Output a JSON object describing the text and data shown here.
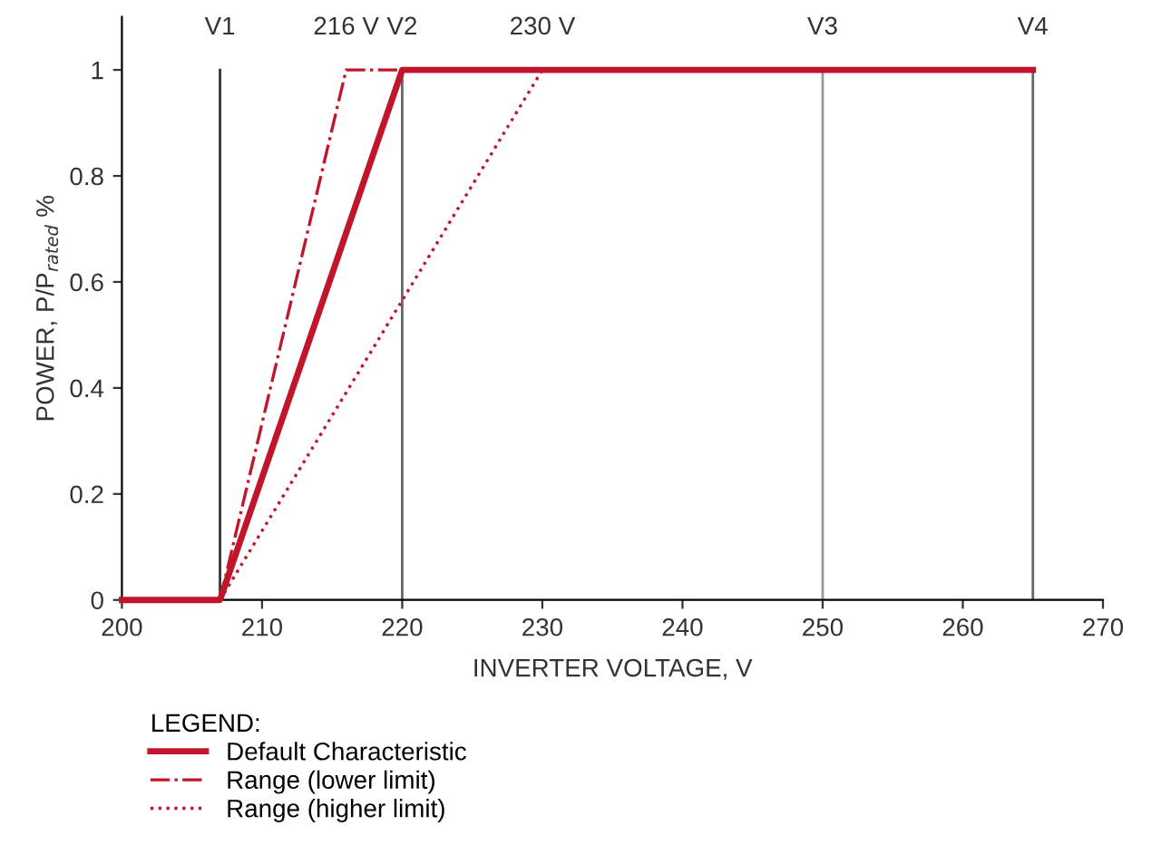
{
  "chart_data": {
    "type": "line",
    "xlabel": "INVERTER VOLTAGE, V",
    "ylabel": "POWER, P/P$_{rated}$ %",
    "xlim": [
      200,
      270
    ],
    "xticks": [
      200,
      210,
      220,
      230,
      240,
      250,
      260,
      270
    ],
    "ylim": [
      0,
      1.1
    ],
    "yticks": [
      0,
      0.2,
      0.4,
      0.6,
      0.8,
      1
    ],
    "grid": false,
    "legend": "bottom left",
    "legend_title": "LEGEND:",
    "series": [
      {
        "name": "Default Characteristic",
        "color": "#c0152a",
        "x": [
          200,
          207,
          220,
          265
        ],
        "values": [
          0,
          0,
          1,
          1
        ],
        "line_style": "solid"
      },
      {
        "name": "Range (lower limit)",
        "color": "#c0152a",
        "x": [
          207,
          216,
          220
        ],
        "values": [
          0,
          1,
          1
        ],
        "line_style": "dashdot"
      },
      {
        "name": "Range (higher limit)",
        "color": "#c0152a",
        "x": [
          207,
          230
        ],
        "values": [
          0,
          1
        ],
        "line_style": "dotted"
      }
    ],
    "ref_lines": [
      {
        "axis": "x",
        "value": 207,
        "label": "V1",
        "color": "#333333"
      },
      {
        "axis": "x",
        "value": 220,
        "label": "V2",
        "color": "#666666"
      },
      {
        "axis": "x",
        "value": 250,
        "label": "V3",
        "color": "#999999"
      },
      {
        "axis": "x",
        "value": 265,
        "label": "V4",
        "color": "#666666"
      }
    ],
    "annotations": [
      {
        "text": "216 V",
        "x": 216,
        "y": 1
      },
      {
        "text": "230 V",
        "x": 230,
        "y": 1
      }
    ]
  }
}
